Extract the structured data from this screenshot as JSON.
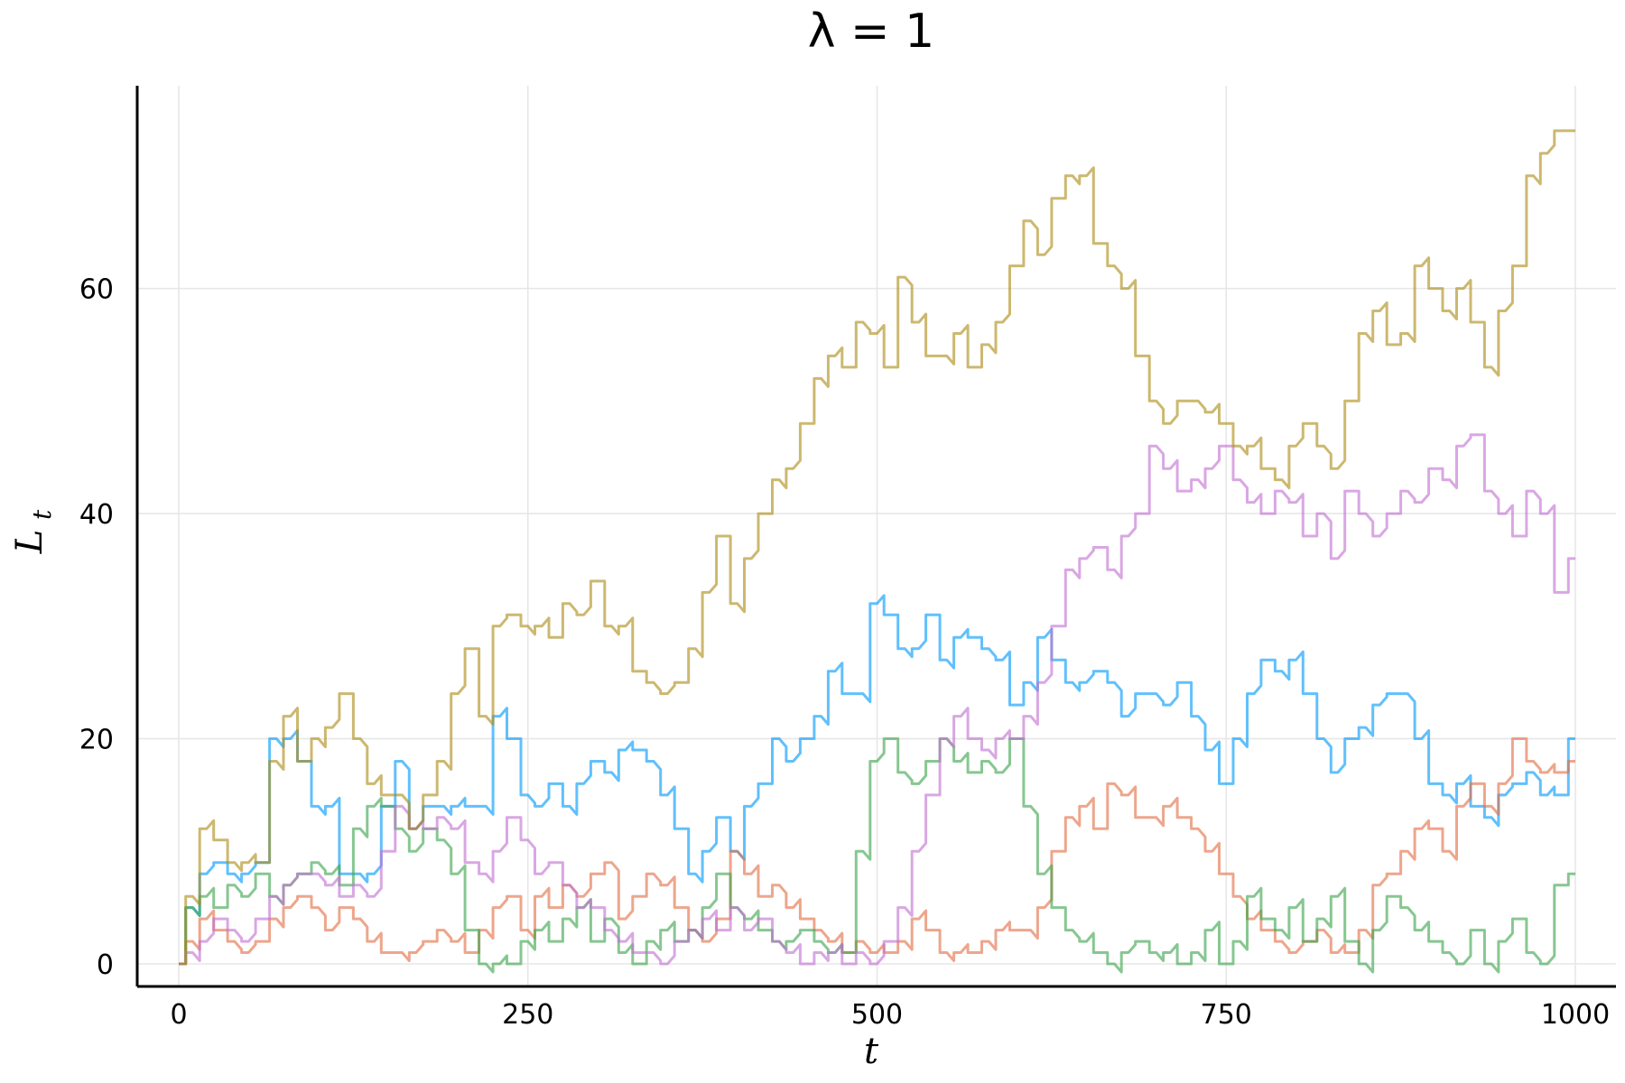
{
  "chart_data": {
    "type": "line",
    "title": "λ = 1",
    "xlabel": "t",
    "ylabel": "L",
    "ylabel_subscript": "t",
    "xlim": [
      0,
      1000
    ],
    "ylim": [
      0,
      76
    ],
    "xticks": [
      0,
      250,
      500,
      750,
      1000
    ],
    "yticks": [
      0,
      20,
      40,
      60
    ],
    "grid": true,
    "legend": "none",
    "series": [
      {
        "color": "#009AFA",
        "x": [
          0,
          10,
          20,
          30,
          40,
          50,
          60,
          70,
          80,
          90,
          100,
          110,
          120,
          130,
          140,
          150,
          160,
          170,
          180,
          190,
          200,
          210,
          220,
          230,
          240,
          250,
          260,
          270,
          280,
          290,
          300,
          310,
          320,
          330,
          340,
          350,
          360,
          370,
          380,
          390,
          400,
          410,
          420,
          430,
          440,
          450,
          460,
          470,
          480,
          490,
          500,
          510,
          520,
          530,
          540,
          550,
          560,
          570,
          580,
          590,
          600,
          610,
          620,
          630,
          640,
          650,
          660,
          670,
          680,
          690,
          700,
          710,
          720,
          730,
          740,
          750,
          760,
          770,
          780,
          790,
          800,
          810,
          820,
          830,
          840,
          850,
          860,
          870,
          880,
          890,
          900,
          910,
          920,
          930,
          940,
          950,
          960,
          970,
          980,
          990,
          1000
        ],
        "y": [
          0,
          5,
          8,
          9,
          8,
          8,
          9,
          20,
          20,
          18,
          14,
          14,
          8,
          8,
          8,
          14,
          18,
          12,
          14,
          14,
          14,
          14,
          14,
          22,
          20,
          15,
          14,
          16,
          14,
          16,
          18,
          17,
          19,
          19,
          18,
          15,
          12,
          8,
          10,
          13,
          10,
          14,
          16,
          20,
          18,
          20,
          22,
          26,
          24,
          24,
          32,
          31,
          28,
          28,
          31,
          27,
          29,
          29,
          28,
          27,
          23,
          25,
          29,
          27,
          25,
          25,
          26,
          25,
          22,
          24,
          24,
          23,
          25,
          22,
          19,
          16,
          20,
          24,
          27,
          26,
          27,
          24,
          20,
          17,
          20,
          21,
          23,
          24,
          24,
          20,
          16,
          15,
          16,
          14,
          13,
          15,
          16,
          17,
          15,
          15,
          20
        ]
      },
      {
        "color": "#E26F46",
        "x": [
          0,
          10,
          20,
          30,
          40,
          50,
          60,
          70,
          80,
          90,
          100,
          110,
          120,
          130,
          140,
          150,
          160,
          170,
          180,
          190,
          200,
          210,
          220,
          230,
          240,
          250,
          260,
          270,
          280,
          290,
          300,
          310,
          320,
          330,
          340,
          350,
          360,
          370,
          380,
          390,
          400,
          410,
          420,
          430,
          440,
          450,
          460,
          470,
          480,
          490,
          500,
          510,
          520,
          530,
          540,
          550,
          560,
          570,
          580,
          590,
          600,
          610,
          620,
          630,
          640,
          650,
          660,
          670,
          680,
          690,
          700,
          710,
          720,
          730,
          740,
          750,
          760,
          770,
          780,
          790,
          800,
          810,
          820,
          830,
          840,
          850,
          860,
          870,
          880,
          890,
          900,
          910,
          920,
          930,
          940,
          950,
          960,
          970,
          980,
          990,
          1000
        ],
        "y": [
          0,
          2,
          4,
          3,
          2,
          1,
          2,
          4,
          5,
          6,
          5,
          3,
          5,
          4,
          2,
          1,
          1,
          1,
          2,
          3,
          2,
          1,
          3,
          5,
          6,
          3,
          6,
          5,
          7,
          6,
          8,
          9,
          4,
          6,
          8,
          7,
          5,
          3,
          2,
          4,
          10,
          8,
          6,
          7,
          5,
          4,
          3,
          2,
          1,
          2,
          1,
          1,
          2,
          4,
          3,
          1,
          1,
          1,
          2,
          3,
          3,
          3,
          5,
          10,
          13,
          14,
          12,
          16,
          15,
          13,
          13,
          14,
          13,
          12,
          10,
          8,
          6,
          4,
          3,
          2,
          1,
          2,
          3,
          1,
          1,
          3,
          7,
          8,
          10,
          12,
          12,
          10,
          14,
          16,
          14,
          16,
          20,
          18,
          17,
          17,
          18
        ]
      },
      {
        "color": "#3DA44D",
        "x": [
          0,
          10,
          20,
          30,
          40,
          50,
          60,
          70,
          80,
          90,
          100,
          110,
          120,
          130,
          140,
          150,
          160,
          170,
          180,
          190,
          200,
          210,
          220,
          230,
          240,
          250,
          260,
          270,
          280,
          290,
          300,
          310,
          320,
          330,
          340,
          350,
          360,
          370,
          380,
          390,
          400,
          410,
          420,
          430,
          440,
          450,
          460,
          470,
          480,
          490,
          500,
          510,
          520,
          530,
          540,
          550,
          560,
          570,
          580,
          590,
          600,
          610,
          620,
          630,
          640,
          650,
          660,
          670,
          680,
          690,
          700,
          710,
          720,
          730,
          740,
          750,
          760,
          770,
          780,
          790,
          800,
          810,
          820,
          830,
          840,
          850,
          860,
          870,
          880,
          890,
          900,
          910,
          920,
          930,
          940,
          950,
          960,
          970,
          980,
          990,
          1000
        ],
        "y": [
          0,
          5,
          6,
          5,
          7,
          6,
          8,
          6,
          7,
          8,
          9,
          8,
          7,
          12,
          14,
          14,
          12,
          10,
          12,
          11,
          8,
          3,
          0,
          0,
          0,
          2,
          3,
          2,
          4,
          5,
          2,
          4,
          1,
          0,
          2,
          3,
          2,
          3,
          5,
          8,
          5,
          4,
          3,
          2,
          2,
          3,
          2,
          1,
          1,
          10,
          18,
          20,
          17,
          16,
          18,
          20,
          18,
          17,
          18,
          17,
          20,
          14,
          8,
          5,
          3,
          2,
          1,
          0,
          1,
          2,
          1,
          1,
          0,
          1,
          3,
          0,
          2,
          6,
          4,
          3,
          5,
          2,
          4,
          6,
          2,
          0,
          3,
          6,
          5,
          3,
          2,
          1,
          0,
          3,
          0,
          2,
          4,
          1,
          0,
          7,
          8
        ]
      },
      {
        "color": "#C271D2",
        "x": [
          0,
          10,
          20,
          30,
          40,
          50,
          60,
          70,
          80,
          90,
          100,
          110,
          120,
          130,
          140,
          150,
          160,
          170,
          180,
          190,
          200,
          210,
          220,
          230,
          240,
          250,
          260,
          270,
          280,
          290,
          300,
          310,
          320,
          330,
          340,
          350,
          360,
          370,
          380,
          390,
          400,
          410,
          420,
          430,
          440,
          450,
          460,
          470,
          480,
          490,
          500,
          510,
          520,
          530,
          540,
          550,
          560,
          570,
          580,
          590,
          600,
          610,
          620,
          630,
          640,
          650,
          660,
          670,
          680,
          690,
          700,
          710,
          720,
          730,
          740,
          750,
          760,
          770,
          780,
          790,
          800,
          810,
          820,
          830,
          840,
          850,
          860,
          870,
          880,
          890,
          900,
          910,
          920,
          930,
          940,
          950,
          960,
          970,
          980,
          990,
          1000
        ],
        "y": [
          0,
          1,
          2,
          4,
          3,
          2,
          4,
          6,
          7,
          8,
          8,
          7,
          6,
          7,
          6,
          10,
          14,
          12,
          12,
          13,
          12,
          9,
          8,
          10,
          13,
          11,
          8,
          9,
          7,
          5,
          5,
          3,
          2,
          1,
          1,
          0,
          2,
          3,
          4,
          3,
          5,
          3,
          4,
          2,
          1,
          0,
          1,
          1,
          0,
          1,
          0,
          2,
          5,
          10,
          15,
          20,
          22,
          20,
          19,
          20,
          20,
          22,
          25,
          30,
          35,
          36,
          37,
          35,
          38,
          40,
          46,
          44,
          42,
          43,
          44,
          46,
          43,
          41,
          40,
          42,
          41,
          38,
          40,
          36,
          42,
          40,
          38,
          40,
          42,
          41,
          44,
          43,
          46,
          47,
          42,
          40,
          38,
          42,
          40,
          33,
          36
        ]
      },
      {
        "color": "#AC8D18",
        "x": [
          0,
          10,
          20,
          30,
          40,
          50,
          60,
          70,
          80,
          90,
          100,
          110,
          120,
          130,
          140,
          150,
          160,
          170,
          180,
          190,
          200,
          210,
          220,
          230,
          240,
          250,
          260,
          270,
          280,
          290,
          300,
          310,
          320,
          330,
          340,
          350,
          360,
          370,
          380,
          390,
          400,
          410,
          420,
          430,
          440,
          450,
          460,
          470,
          480,
          490,
          500,
          510,
          520,
          530,
          540,
          550,
          560,
          570,
          580,
          590,
          600,
          610,
          620,
          630,
          640,
          650,
          660,
          670,
          680,
          690,
          700,
          710,
          720,
          730,
          740,
          750,
          760,
          770,
          780,
          790,
          800,
          810,
          820,
          830,
          840,
          850,
          860,
          870,
          880,
          890,
          900,
          910,
          920,
          930,
          940,
          950,
          960,
          970,
          980,
          990,
          1000
        ],
        "y": [
          0,
          6,
          12,
          11,
          9,
          9,
          9,
          18,
          22,
          18,
          20,
          21,
          24,
          20,
          16,
          15,
          15,
          12,
          15,
          18,
          24,
          28,
          22,
          30,
          31,
          30,
          30,
          29,
          32,
          31,
          34,
          30,
          30,
          26,
          25,
          24,
          25,
          28,
          33,
          38,
          32,
          36,
          40,
          43,
          44,
          48,
          52,
          54,
          53,
          57,
          56,
          53,
          61,
          57,
          54,
          54,
          56,
          53,
          55,
          57,
          62,
          66,
          63,
          68,
          70,
          70,
          64,
          62,
          60,
          54,
          50,
          48,
          50,
          50,
          49,
          48,
          46,
          46,
          44,
          43,
          46,
          48,
          46,
          44,
          50,
          56,
          58,
          55,
          56,
          62,
          60,
          58,
          60,
          57,
          53,
          58,
          62,
          70,
          72,
          74,
          74
        ]
      }
    ]
  }
}
